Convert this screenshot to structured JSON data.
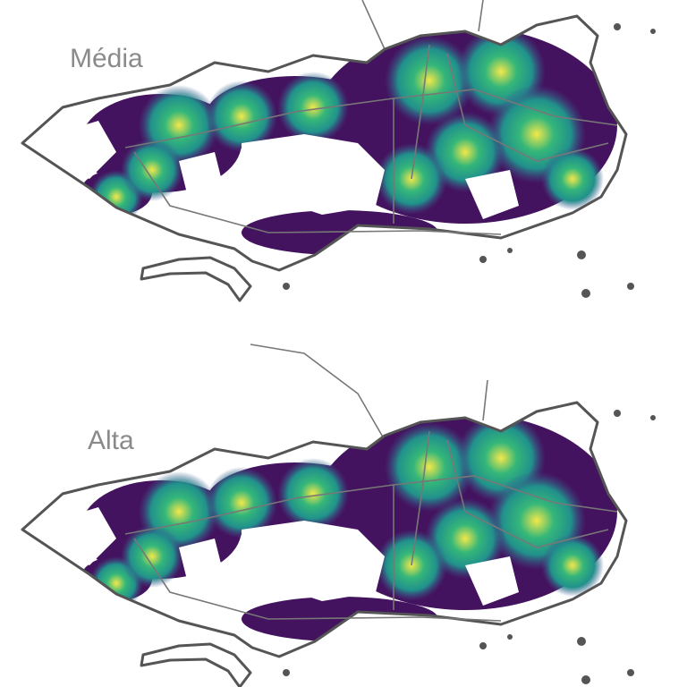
{
  "panels": [
    {
      "label": "Média"
    },
    {
      "label": "Alta"
    }
  ]
}
